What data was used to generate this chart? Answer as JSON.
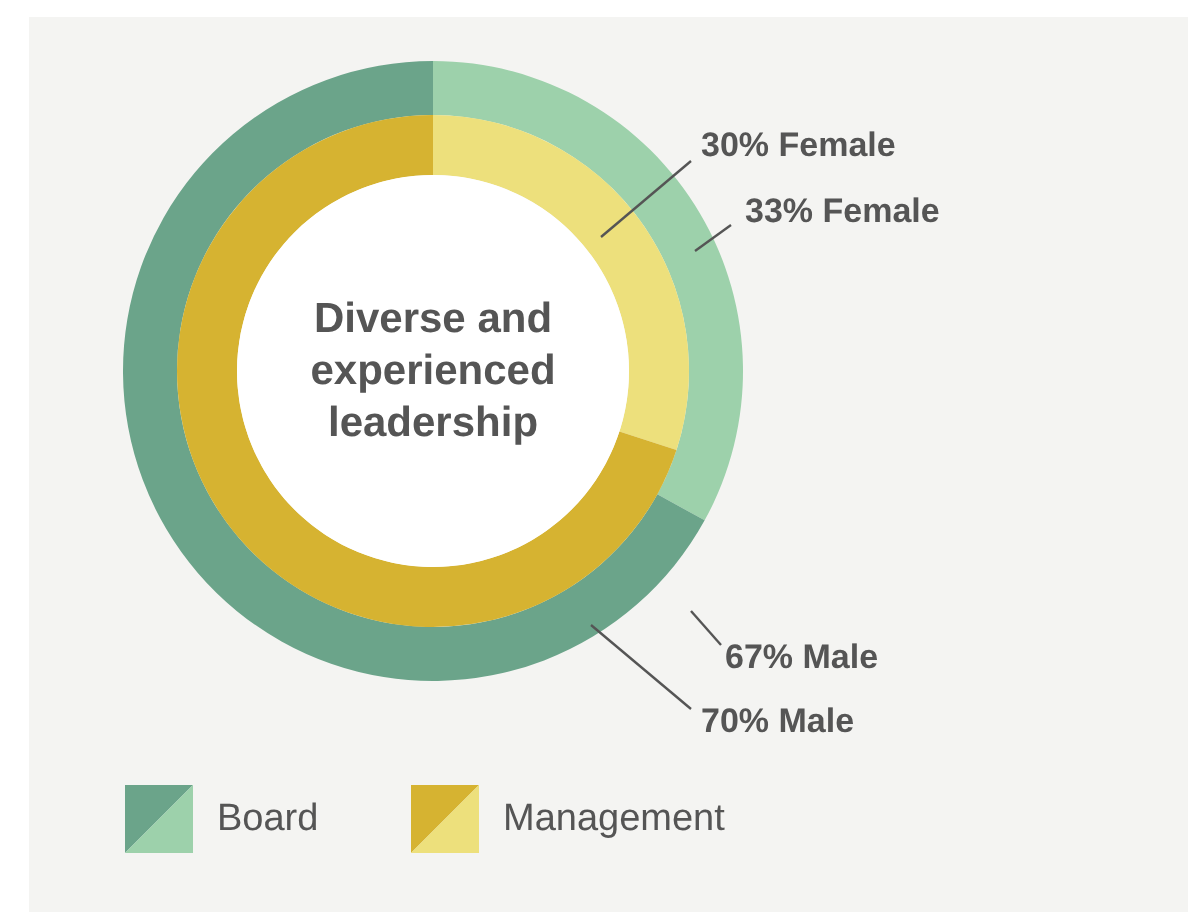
{
  "chart_data": {
    "type": "donut",
    "title": "Diverse and experienced leadership",
    "categories": [
      "Female",
      "Male"
    ],
    "series": [
      {
        "name": "Board",
        "values": [
          33,
          67
        ],
        "colors": [
          "#9dd1ab",
          "#6ba48a"
        ],
        "value_labels": [
          "33%",
          "67%"
        ]
      },
      {
        "name": "Management",
        "values": [
          30,
          70
        ],
        "colors": [
          "#ede07c",
          "#d6b331"
        ],
        "value_labels": [
          "30%",
          "70%"
        ]
      }
    ],
    "legend": "bottom left"
  }
}
